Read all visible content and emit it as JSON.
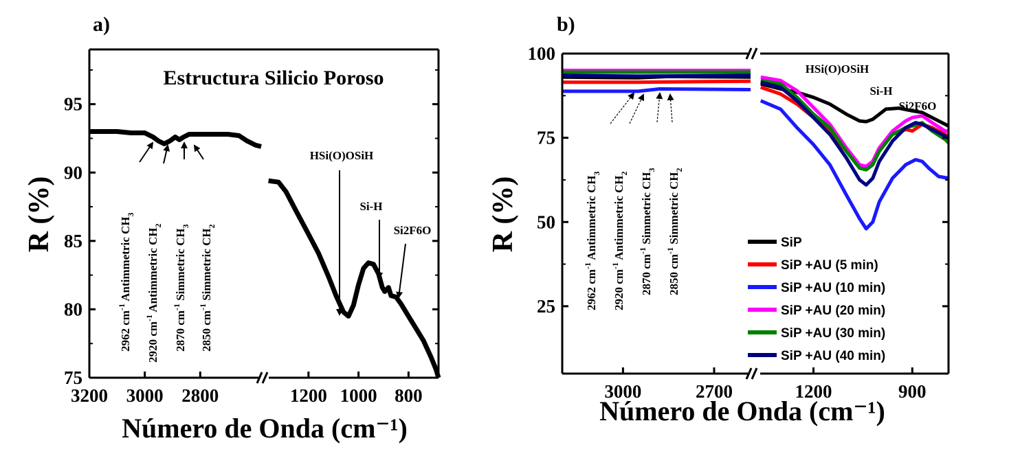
{
  "chart_data": [
    {
      "panel_label": "a)",
      "type": "line",
      "title": "Estructura Silicio Poroso",
      "xlabel": "Número de Onda (cm⁻¹)",
      "ylabel": "R (%)",
      "ylim": [
        75,
        99
      ],
      "yticks": [
        75,
        80,
        85,
        90,
        95
      ],
      "x_left_segment": {
        "range": [
          3200,
          2580
        ],
        "ticks": [
          3200,
          3000,
          2800
        ]
      },
      "x_right_segment": {
        "range": [
          1370,
          680
        ],
        "ticks": [
          1200,
          1000,
          800
        ]
      },
      "series": [
        {
          "color": "#000000",
          "segment1": [
            [
              3200,
              93.0
            ],
            [
              3150,
              93.0
            ],
            [
              3100,
              93.0
            ],
            [
              3050,
              92.9
            ],
            [
              3000,
              92.9
            ],
            [
              2970,
              92.6
            ],
            [
              2950,
              92.3
            ],
            [
              2930,
              92.1
            ],
            [
              2910,
              92.3
            ],
            [
              2890,
              92.6
            ],
            [
              2875,
              92.4
            ],
            [
              2860,
              92.6
            ],
            [
              2840,
              92.8
            ],
            [
              2800,
              92.8
            ],
            [
              2750,
              92.8
            ],
            [
              2700,
              92.8
            ],
            [
              2660,
              92.7
            ],
            [
              2630,
              92.3
            ],
            [
              2600,
              92.0
            ],
            [
              2580,
              91.9
            ]
          ],
          "segment2": [
            [
              1360,
              89.4
            ],
            [
              1320,
              89.3
            ],
            [
              1290,
              88.6
            ],
            [
              1250,
              87.2
            ],
            [
              1200,
              85.5
            ],
            [
              1160,
              84.1
            ],
            [
              1120,
              82.4
            ],
            [
              1090,
              81.0
            ],
            [
              1060,
              79.8
            ],
            [
              1040,
              79.5
            ],
            [
              1020,
              80.3
            ],
            [
              1000,
              81.8
            ],
            [
              980,
              83.0
            ],
            [
              960,
              83.4
            ],
            [
              940,
              83.3
            ],
            [
              920,
              82.6
            ],
            [
              905,
              81.6
            ],
            [
              895,
              81.3
            ],
            [
              880,
              81.6
            ],
            [
              870,
              81.0
            ],
            [
              850,
              80.9
            ],
            [
              830,
              80.4
            ],
            [
              800,
              79.5
            ],
            [
              770,
              78.6
            ],
            [
              740,
              77.7
            ],
            [
              710,
              76.5
            ],
            [
              690,
              75.6
            ],
            [
              680,
              75.0
            ]
          ]
        }
      ],
      "annotations": [
        "HSi(O)OSiH",
        "Si-H",
        "Si2F6O"
      ],
      "assignments": [
        {
          "value": "2962",
          "unit": "cm",
          "exp": "-1",
          "label": "Antimmetric CH",
          "sub": "3"
        },
        {
          "value": "2920",
          "unit": "cm",
          "exp": "-1",
          "label": "Antimmetric CH",
          "sub": "2"
        },
        {
          "value": "2870",
          "unit": "cm",
          "exp": "-1",
          "label": "Simmetric CH",
          "sub": "3"
        },
        {
          "value": "2850",
          "unit": "cm",
          "exp": "-1",
          "label": "Simmetric CH",
          "sub": "2"
        }
      ]
    },
    {
      "panel_label": "b)",
      "type": "line",
      "xlabel": "Número de Onda (cm⁻¹)",
      "ylabel": "R (%)",
      "ylim": [
        5,
        100
      ],
      "yticks": [
        25,
        50,
        75,
        100
      ],
      "x_left_segment": {
        "range": [
          3200,
          2580
        ],
        "ticks": [
          3000,
          2700
        ]
      },
      "x_right_segment": {
        "range": [
          1370,
          790
        ],
        "ticks": [
          1200,
          900
        ]
      },
      "legend_position": "bottom-right",
      "series": [
        {
          "name": "SiP",
          "color": "#000000",
          "segment1": [
            [
              3200,
              93.0
            ],
            [
              2950,
              92.8
            ],
            [
              2850,
              93.2
            ],
            [
              2580,
              93.0
            ]
          ],
          "segment2": [
            [
              1360,
              91.0
            ],
            [
              1300,
              89.5
            ],
            [
              1250,
              88.5
            ],
            [
              1200,
              87.0
            ],
            [
              1150,
              85.0
            ],
            [
              1100,
              82.0
            ],
            [
              1060,
              80.0
            ],
            [
              1040,
              79.8
            ],
            [
              1020,
              80.5
            ],
            [
              1000,
              82.0
            ],
            [
              980,
              83.5
            ],
            [
              940,
              83.8
            ],
            [
              900,
              83.0
            ],
            [
              870,
              82.5
            ],
            [
              840,
              81.0
            ],
            [
              800,
              79.0
            ],
            [
              790,
              78.5
            ]
          ]
        },
        {
          "name": "SiP +AU (5 min)",
          "color": "#ff0000",
          "segment1": [
            [
              3200,
              91.5
            ],
            [
              2950,
              91.5
            ],
            [
              2580,
              91.8
            ]
          ],
          "segment2": [
            [
              1360,
              90.0
            ],
            [
              1300,
              88.0
            ],
            [
              1250,
              85.0
            ],
            [
              1200,
              81.0
            ],
            [
              1150,
              77.0
            ],
            [
              1100,
              71.0
            ],
            [
              1060,
              66.5
            ],
            [
              1040,
              66.0
            ],
            [
              1020,
              68.0
            ],
            [
              1000,
              72.0
            ],
            [
              960,
              76.0
            ],
            [
              920,
              77.5
            ],
            [
              900,
              77.0
            ],
            [
              870,
              79.0
            ],
            [
              840,
              78.0
            ],
            [
              800,
              76.0
            ],
            [
              790,
              75.5
            ]
          ]
        },
        {
          "name": "SiP +AU  (10 min)",
          "color": "#1a1aff",
          "segment1": [
            [
              3200,
              88.8
            ],
            [
              2950,
              88.8
            ],
            [
              2880,
              89.5
            ],
            [
              2580,
              89.3
            ]
          ],
          "segment2": [
            [
              1360,
              86.0
            ],
            [
              1300,
              83.5
            ],
            [
              1250,
              78.0
            ],
            [
              1200,
              73.0
            ],
            [
              1150,
              67.0
            ],
            [
              1100,
              58.0
            ],
            [
              1060,
              51.0
            ],
            [
              1040,
              48.0
            ],
            [
              1020,
              50.0
            ],
            [
              1000,
              56.0
            ],
            [
              960,
              63.0
            ],
            [
              920,
              67.0
            ],
            [
              890,
              68.5
            ],
            [
              870,
              68.0
            ],
            [
              850,
              66.0
            ],
            [
              820,
              63.5
            ],
            [
              790,
              63.0
            ]
          ]
        },
        {
          "name": "SiP +AU  (20 min)",
          "color": "#ff00ff",
          "segment1": [
            [
              3200,
              95.0
            ],
            [
              2950,
              95.0
            ],
            [
              2580,
              95.0
            ]
          ],
          "segment2": [
            [
              1360,
              93.0
            ],
            [
              1300,
              92.0
            ],
            [
              1250,
              89.0
            ],
            [
              1200,
              84.0
            ],
            [
              1150,
              79.0
            ],
            [
              1100,
              72.0
            ],
            [
              1060,
              67.0
            ],
            [
              1040,
              66.5
            ],
            [
              1020,
              68.0
            ],
            [
              1000,
              72.0
            ],
            [
              960,
              77.0
            ],
            [
              920,
              80.0
            ],
            [
              900,
              81.0
            ],
            [
              870,
              81.5
            ],
            [
              840,
              79.5
            ],
            [
              800,
              77.0
            ],
            [
              790,
              77.0
            ]
          ]
        },
        {
          "name": "SiP +AU  (30 min)",
          "color": "#008000",
          "segment1": [
            [
              3200,
              94.5
            ],
            [
              2950,
              94.5
            ],
            [
              2580,
              94.5
            ]
          ],
          "segment2": [
            [
              1360,
              92.0
            ],
            [
              1300,
              91.0
            ],
            [
              1250,
              87.0
            ],
            [
              1200,
              82.0
            ],
            [
              1150,
              78.0
            ],
            [
              1100,
              71.0
            ],
            [
              1060,
              66.0
            ],
            [
              1040,
              65.5
            ],
            [
              1020,
              67.0
            ],
            [
              1000,
              71.0
            ],
            [
              960,
              76.0
            ],
            [
              920,
              78.0
            ],
            [
              900,
              78.5
            ],
            [
              870,
              79.5
            ],
            [
              840,
              77.0
            ],
            [
              800,
              74.5
            ],
            [
              790,
              73.5
            ]
          ]
        },
        {
          "name": "SiP +AU  (40 min)",
          "color": "#000080",
          "segment1": [
            [
              3200,
              93.5
            ],
            [
              2950,
              93.3
            ],
            [
              2580,
              93.5
            ]
          ],
          "segment2": [
            [
              1360,
              91.5
            ],
            [
              1300,
              90.0
            ],
            [
              1250,
              86.0
            ],
            [
              1200,
              81.0
            ],
            [
              1150,
              76.0
            ],
            [
              1100,
              69.0
            ],
            [
              1060,
              62.5
            ],
            [
              1040,
              61.0
            ],
            [
              1020,
              63.0
            ],
            [
              1000,
              68.0
            ],
            [
              960,
              74.0
            ],
            [
              920,
              78.0
            ],
            [
              890,
              79.5
            ],
            [
              870,
              79.0
            ],
            [
              840,
              77.5
            ],
            [
              800,
              75.5
            ],
            [
              790,
              75.0
            ]
          ]
        }
      ],
      "annotations": [
        "HSi(O)OSiH",
        "Si-H",
        "Si2F6O"
      ],
      "assignments": [
        {
          "value": "2962",
          "unit": "cm",
          "exp": "-1",
          "label": "Antimmetric CH",
          "sub": "3"
        },
        {
          "value": "2920",
          "unit": "cm",
          "exp": "-1",
          "label": "Antimmetric CH",
          "sub": "2"
        },
        {
          "value": "2870",
          "unit": "cm",
          "exp": "-1",
          "label": "Simmetric CH",
          "sub": "3"
        },
        {
          "value": "2850",
          "unit": "cm",
          "exp": "-1",
          "label": "Simmetric CH",
          "sub": "2"
        }
      ]
    }
  ]
}
